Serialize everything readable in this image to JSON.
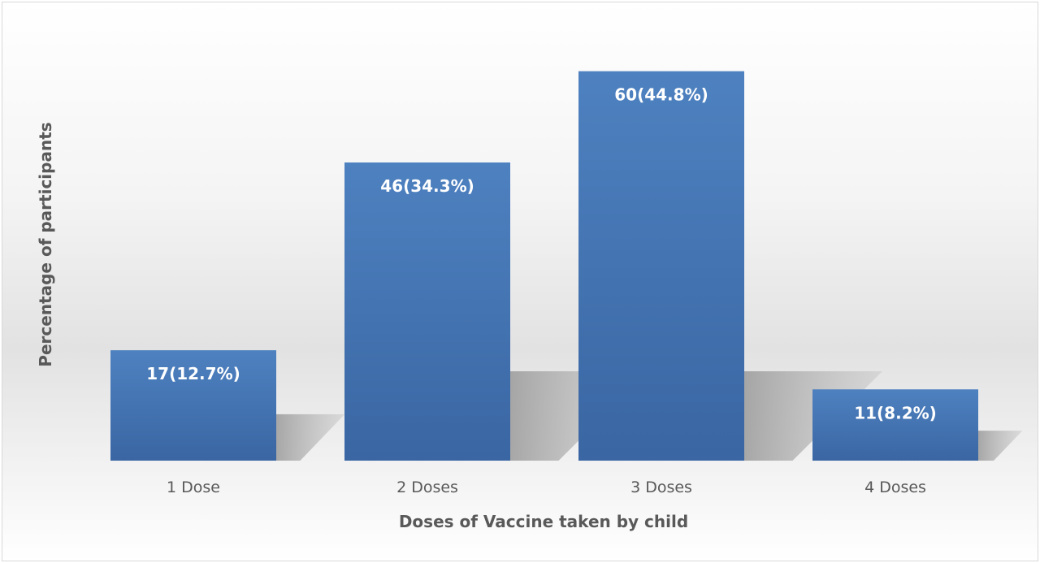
{
  "chart_data": {
    "type": "bar",
    "title": "",
    "xlabel": "Doses of Vaccine taken by child",
    "ylabel": "Percentage of participants",
    "categories": [
      "1 Dose",
      "2 Doses",
      "3 Doses",
      "4 Doses"
    ],
    "values": [
      12.7,
      34.3,
      44.8,
      8.2
    ],
    "data_labels": [
      "17(12.7%)",
      "46(34.3%)",
      "60(44.8%)",
      "11(8.2%)"
    ],
    "ylim": [
      0,
      50
    ],
    "grid": false,
    "legend": "none",
    "bar_color": "#4472c4"
  }
}
